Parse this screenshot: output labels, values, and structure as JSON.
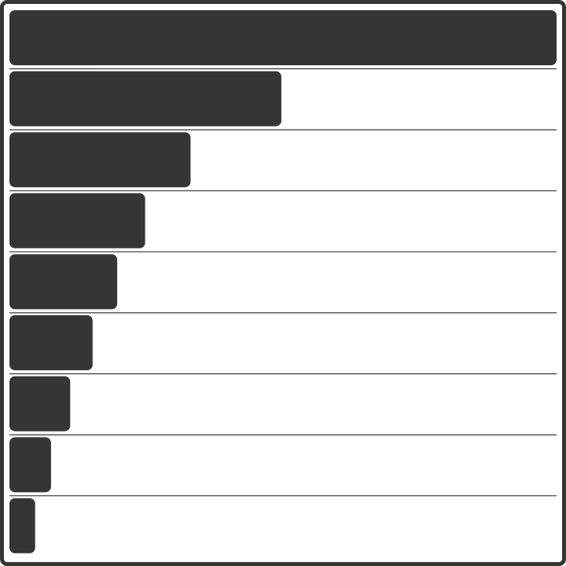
{
  "chart_data": {
    "type": "bar",
    "orientation": "horizontal",
    "categories": [
      "",
      "",
      "",
      "",
      "",
      "",
      "",
      "",
      ""
    ],
    "values": [
      1.0,
      0.497,
      0.331,
      0.248,
      0.197,
      0.152,
      0.111,
      0.076,
      0.047
    ],
    "xlim": [
      0,
      1
    ],
    "bar_color": "#353535",
    "grid": false,
    "legend": "none",
    "title": "",
    "xlabel": "",
    "ylabel": ""
  }
}
